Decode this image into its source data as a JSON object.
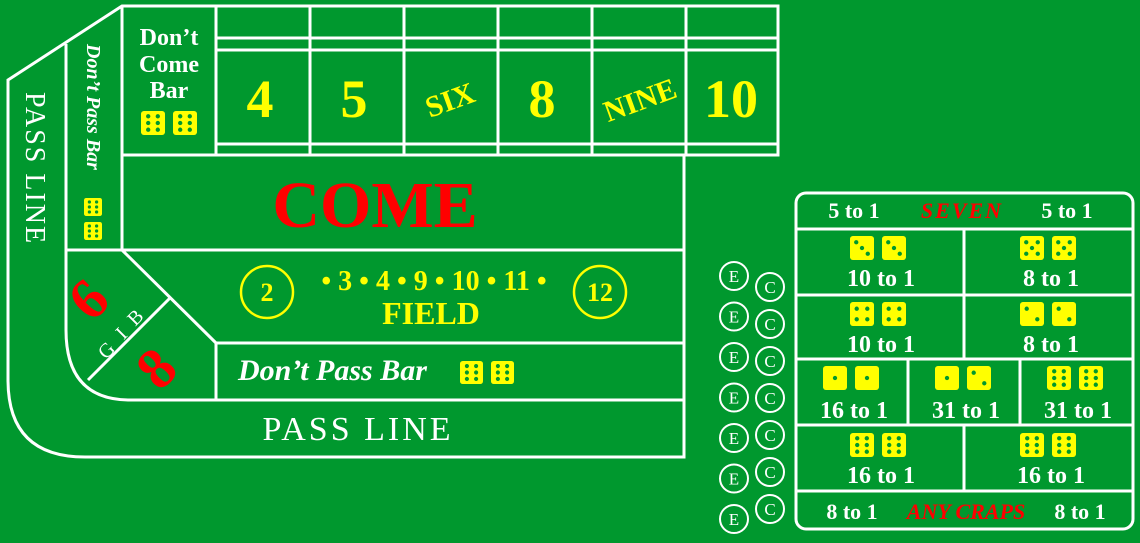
{
  "colors": {
    "felt": "#00982e",
    "line": "#ffffff",
    "yellow": "#ffff00",
    "red": "#ff0000"
  },
  "layout_table": {
    "dont_come_bar": {
      "line1": "Don’t",
      "line2": "Come",
      "line3": "Bar"
    },
    "point_numbers": [
      "4",
      "5",
      "SIX",
      "8",
      "NINE",
      "10"
    ],
    "come": "COME",
    "field": {
      "circle_left": "2",
      "numbers": "• 3 • 4 • 9 • 10 • 11 •",
      "circle_right": "12",
      "label": "FIELD"
    },
    "dont_pass_bar_side": "Don’t Pass Bar",
    "dont_pass_bar_bottom": "Don’t Pass Bar",
    "big": {
      "six": "6",
      "eight": "8",
      "letters": [
        "B",
        "I",
        "G"
      ]
    },
    "pass_line_side": "PASS LINE",
    "pass_line_bottom": "PASS LINE"
  },
  "proposition_box": {
    "seven": {
      "left_odds": "5 to 1",
      "label": "SEVEN",
      "right_odds": "5 to 1"
    },
    "hard_ways": [
      {
        "name": "hard-six",
        "dice": [
          3,
          3
        ],
        "odds": "10 to 1"
      },
      {
        "name": "hard-ten",
        "dice": [
          5,
          5
        ],
        "odds": "8 to 1"
      },
      {
        "name": "hard-eight",
        "dice": [
          4,
          4
        ],
        "odds": "10 to 1"
      },
      {
        "name": "hard-four",
        "dice": [
          2,
          2
        ],
        "odds": "8 to 1"
      }
    ],
    "one_roll": [
      {
        "name": "aces",
        "dice": [
          1,
          1
        ],
        "odds": "16 to 1"
      },
      {
        "name": "ace-deuce",
        "dice": [
          1,
          2
        ],
        "odds": "31 to 1"
      },
      {
        "name": "yo-eleven",
        "dice": [
          6,
          5
        ],
        "odds": "31 to 1"
      }
    ],
    "bottom_row": [
      {
        "name": "any-craps-pair",
        "dice": [
          6,
          6
        ],
        "odds": "16 to 1"
      },
      {
        "name": "twelve",
        "dice": [
          6,
          6
        ],
        "odds": "16 to 1"
      }
    ],
    "any_craps": {
      "left_odds": "8 to 1",
      "label": "ANY CRAPS",
      "right_odds": "8 to 1"
    }
  },
  "ec_bets": {
    "e": "E",
    "c": "C",
    "rows": 7
  }
}
